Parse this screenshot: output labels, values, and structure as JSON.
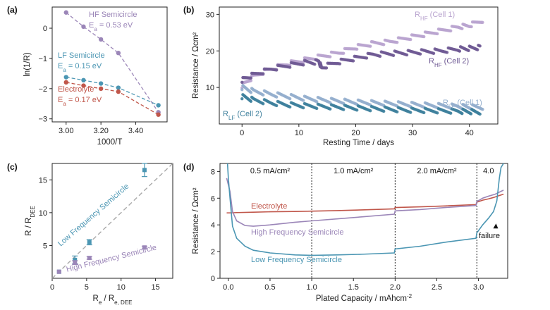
{
  "colors": {
    "hf": "#9b86b8",
    "lf": "#4b96b3",
    "electrolyte": "#c0564a",
    "cell1_hf": "#b9a4cf",
    "cell2_hf": "#6f5a94",
    "cell1_lf": "#93aecd",
    "cell2_lf": "#3d7f9c",
    "guide": "#a9a9a9"
  },
  "chart_data": [
    {
      "panel": "(a)",
      "type": "scatter",
      "xlabel": "1000/T",
      "ylabel": "ln(1/R)",
      "xlim": [
        2.92,
        3.58
      ],
      "ylim": [
        -3.1,
        0.7
      ],
      "xticks": [
        "3.00",
        "3.20",
        "3.40"
      ],
      "xtick_values": [
        3.0,
        3.2,
        3.4
      ],
      "yticks": [
        "0",
        "−1",
        "−2",
        "−3"
      ],
      "ytick_values": [
        0,
        -1,
        -2,
        -3
      ],
      "series": [
        {
          "name": "HF Semicircle",
          "label": "E",
          "label_sub": "a",
          "label_rest": " = 0.53 eV",
          "color_key": "hf",
          "x": [
            3.0,
            3.1,
            3.2,
            3.3,
            3.53
          ],
          "y": [
            0.52,
            0.05,
            -0.37,
            -0.82,
            -2.78
          ]
        },
        {
          "name": "LF Semicircle",
          "label": "E",
          "label_sub": "a",
          "label_rest": " = 0.15 eV",
          "color_key": "lf",
          "x": [
            3.0,
            3.1,
            3.2,
            3.3,
            3.53
          ],
          "y": [
            -1.62,
            -1.72,
            -1.83,
            -1.97,
            -2.55
          ]
        },
        {
          "name": "Electrolyte",
          "label": "E",
          "label_sub": "a",
          "label_rest": " = 0.17 eV",
          "color_key": "electrolyte",
          "x": [
            3.0,
            3.1,
            3.2,
            3.3,
            3.53
          ],
          "y": [
            -1.79,
            -1.9,
            -2.0,
            -2.1,
            -2.86
          ]
        }
      ]
    },
    {
      "panel": "(b)",
      "type": "scatter",
      "xlabel": "Resting Time / days",
      "ylabel": "Resistance / Ωcm²",
      "xlim": [
        -4,
        45
      ],
      "ylim": [
        0,
        32
      ],
      "xticks": [
        "0",
        "10",
        "20",
        "30",
        "40"
      ],
      "xtick_values": [
        0,
        10,
        20,
        30,
        40
      ],
      "yticks": [
        "10",
        "20",
        "30"
      ],
      "ytick_values": [
        10,
        20,
        30
      ],
      "series": [
        {
          "name": "RHF (Cell 1)",
          "label": "R",
          "label_sub": "HF",
          "label_rest": " (Cell 1)",
          "color_key": "cell1_hf",
          "x": [
            0,
            2,
            5,
            8,
            11,
            14,
            17,
            20,
            23,
            26,
            29,
            32,
            35,
            38,
            40,
            42.5
          ],
          "y": [
            10.5,
            13,
            15,
            16.5,
            17.5,
            18.5,
            19.5,
            21,
            22,
            22.5,
            23.5,
            24.5,
            25.5,
            26.5,
            27,
            28.5
          ]
        },
        {
          "name": "RHF (Cell 2)",
          "label": "R",
          "label_sub": "HF",
          "label_rest": " (Cell 2)",
          "color_key": "cell2_hf",
          "x": [
            0,
            2,
            5,
            8,
            11,
            13.5,
            14,
            17,
            20,
            23,
            26,
            29,
            32,
            35,
            38,
            40,
            42
          ],
          "y": [
            12,
            13.5,
            15,
            16,
            16.8,
            17,
            15.5,
            17,
            18,
            19,
            19.3,
            19.5,
            19.8,
            20,
            20.5,
            20.7,
            21
          ]
        },
        {
          "name": "RLF (Cell 1)",
          "label": "R",
          "label_sub": "LF",
          "label_rest": " (Cell 1)",
          "color_key": "cell1_lf",
          "x": [
            0,
            2,
            5,
            8,
            11,
            14,
            17,
            20,
            23,
            26,
            29,
            32,
            35,
            38,
            40,
            42.5
          ],
          "y": [
            10,
            9,
            8.2,
            7.6,
            7,
            6.6,
            6.3,
            6,
            5.8,
            5.6,
            5.4,
            5.2,
            5,
            4.8,
            4.7,
            4.6
          ]
        },
        {
          "name": "RLF (Cell 2)",
          "label": "R",
          "label_sub": "LF",
          "label_rest": " (Cell 2)",
          "color_key": "cell2_lf",
          "x": [
            0,
            2,
            5,
            8,
            11,
            14,
            17,
            20,
            23,
            26,
            29,
            32,
            35,
            38,
            40,
            42
          ],
          "y": [
            7.5,
            6.6,
            5.8,
            5.3,
            5,
            4.8,
            4.6,
            4.4,
            4.2,
            4,
            3.8,
            3.7,
            3.6,
            3.5,
            3.4,
            3.3
          ]
        }
      ]
    },
    {
      "panel": "(c)",
      "type": "scatter",
      "xlabel": "R",
      "xlabel_sub": "e",
      "xlabel_rest": " / R",
      "xlabel_sub2": "e, DEE",
      "ylabel": "R / R",
      "ylabel_sub": "DEE",
      "xlim": [
        0,
        17.5
      ],
      "ylim": [
        0,
        17.5
      ],
      "xticks": [
        "0",
        "5",
        "10",
        "15"
      ],
      "xtick_values": [
        0,
        5,
        10,
        15
      ],
      "yticks": [
        "5",
        "10",
        "15"
      ],
      "ytick_values": [
        5,
        10,
        15
      ],
      "guide_line": [
        [
          0,
          0
        ],
        [
          17.5,
          17.5
        ]
      ],
      "series": [
        {
          "name": "Low Frequency Semicircle",
          "color_key": "lf",
          "x": [
            1,
            3.3,
            5.4,
            13.4
          ],
          "y": [
            1,
            2.8,
            5.5,
            16.5
          ],
          "err": [
            0,
            0.6,
            0.4,
            1.0
          ]
        },
        {
          "name": "High Frequency Semicircle",
          "color_key": "hf",
          "x": [
            1,
            3.3,
            5.4,
            13.4
          ],
          "y": [
            1,
            2.4,
            3.1,
            4.7
          ],
          "err": [
            0,
            0.3,
            0.2,
            0.2
          ]
        }
      ]
    },
    {
      "panel": "(d)",
      "type": "line",
      "xlabel": "Plated Capacity / mAhcm",
      "xlabel_sup": "-2",
      "ylabel": "Resistance / Ωcm²",
      "xlim": [
        -0.1,
        3.35
      ],
      "ylim": [
        0,
        8.6
      ],
      "xticks": [
        "0.0",
        "0.5",
        "1.0",
        "1.5",
        "2.0",
        "2.5",
        "3.0"
      ],
      "xtick_values": [
        0,
        0.5,
        1,
        1.5,
        2,
        2.5,
        3
      ],
      "yticks": [
        "0",
        "2",
        "4",
        "6",
        "8"
      ],
      "ytick_values": [
        0,
        2,
        4,
        6,
        8
      ],
      "dividers": [
        1.0,
        2.0,
        2.98
      ],
      "regions": [
        {
          "label": "0.5 mA/cm²",
          "x": 0.5
        },
        {
          "label": "1.0 mA/cm²",
          "x": 1.5
        },
        {
          "label": "2.0 mA/cm²",
          "x": 2.5
        },
        {
          "label": "4.0",
          "x": 3.12
        }
      ],
      "annotation": {
        "text": "failure",
        "x": 3.13,
        "y": 3.0,
        "arrow_to": [
          3.21,
          4.1
        ]
      },
      "series": [
        {
          "name": "Electrolyte",
          "color_key": "electrolyte",
          "x": [
            -0.02,
            0.02,
            0.1,
            0.3,
            0.5,
            0.8,
            1.0,
            1.3,
            1.6,
            1.99,
            2.0,
            2.3,
            2.6,
            2.97,
            2.98,
            3.05,
            3.12,
            3.18,
            3.25,
            3.3
          ],
          "y": [
            4.9,
            4.9,
            4.92,
            4.95,
            4.98,
            5.0,
            5.03,
            5.07,
            5.12,
            5.2,
            5.3,
            5.35,
            5.42,
            5.52,
            5.7,
            5.85,
            5.95,
            6.05,
            6.2,
            6.3
          ]
        },
        {
          "name": "High Frequency Semicircle",
          "color_key": "hf",
          "x": [
            -0.02,
            0.02,
            0.05,
            0.1,
            0.2,
            0.3,
            0.5,
            0.8,
            1.0,
            1.3,
            1.6,
            1.99,
            2.0,
            2.3,
            2.6,
            2.97,
            2.98,
            3.05,
            3.12,
            3.2,
            3.25,
            3.3
          ],
          "y": [
            7.5,
            6.5,
            5.0,
            4.3,
            3.95,
            3.9,
            4.0,
            4.2,
            4.3,
            4.45,
            4.6,
            4.8,
            5.05,
            5.15,
            5.3,
            5.45,
            5.75,
            6.0,
            6.15,
            6.3,
            6.45,
            6.6
          ]
        },
        {
          "name": "Low Frequency Semicircle",
          "color_key": "lf",
          "x": [
            -0.01,
            0.0,
            0.02,
            0.05,
            0.1,
            0.2,
            0.3,
            0.5,
            0.8,
            1.0,
            1.3,
            1.6,
            1.99,
            2.0,
            2.3,
            2.6,
            2.97,
            2.98,
            3.05,
            3.12,
            3.18,
            3.22,
            3.25,
            3.27,
            3.3
          ],
          "y": [
            8.6,
            7.5,
            6.0,
            3.9,
            3.0,
            2.4,
            2.1,
            1.9,
            1.75,
            1.72,
            1.75,
            1.8,
            1.9,
            2.2,
            2.4,
            2.7,
            3.0,
            3.4,
            4.0,
            4.5,
            5.0,
            5.8,
            7.5,
            8.3,
            8.6
          ]
        }
      ]
    }
  ]
}
